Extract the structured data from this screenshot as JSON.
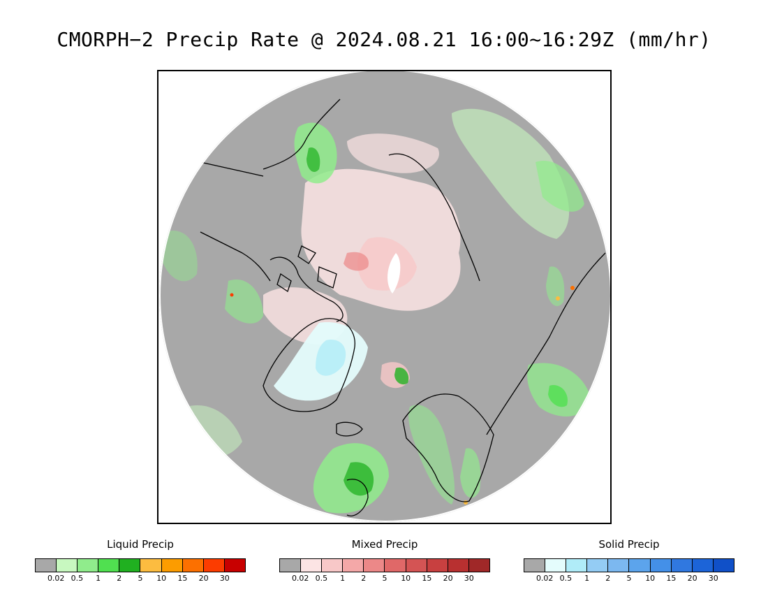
{
  "title": "CMORPH−2 Precip Rate @ 2024.08.21 16:00~16:29Z (mm/hr)",
  "map": {
    "projection": "north-polar-stereographic",
    "background_color": "#a8a8a8",
    "coastline_color": "#000000"
  },
  "legends": [
    {
      "name": "liquid",
      "title": "Liquid Precip",
      "colors": [
        "#a8a8a8",
        "#c8f8c0",
        "#90ec8c",
        "#50e050",
        "#20b020",
        "#fcbc40",
        "#fc9c00",
        "#fc7000",
        "#fc3c00",
        "#c80000"
      ],
      "ticks": [
        "0.02",
        "0.5",
        "1",
        "2",
        "5",
        "10",
        "15",
        "20",
        "30"
      ]
    },
    {
      "name": "mixed",
      "title": "Mixed Precip",
      "colors": [
        "#a8a8a8",
        "#fce4e4",
        "#f8c8c8",
        "#f4a8a8",
        "#ec8888",
        "#e06868",
        "#d45454",
        "#c84040",
        "#b83030",
        "#a02828"
      ],
      "ticks": [
        "0.02",
        "0.5",
        "1",
        "2",
        "5",
        "10",
        "15",
        "20",
        "30"
      ]
    },
    {
      "name": "solid",
      "title": "Solid Precip",
      "colors": [
        "#a8a8a8",
        "#e4fcfc",
        "#b0ecf8",
        "#94ccf4",
        "#7cb8f0",
        "#5ca4ec",
        "#4490e8",
        "#3078e0",
        "#1c64d8",
        "#1050c8"
      ],
      "ticks": [
        "0.02",
        "0.5",
        "1",
        "2",
        "5",
        "10",
        "15",
        "20",
        "30"
      ]
    }
  ]
}
